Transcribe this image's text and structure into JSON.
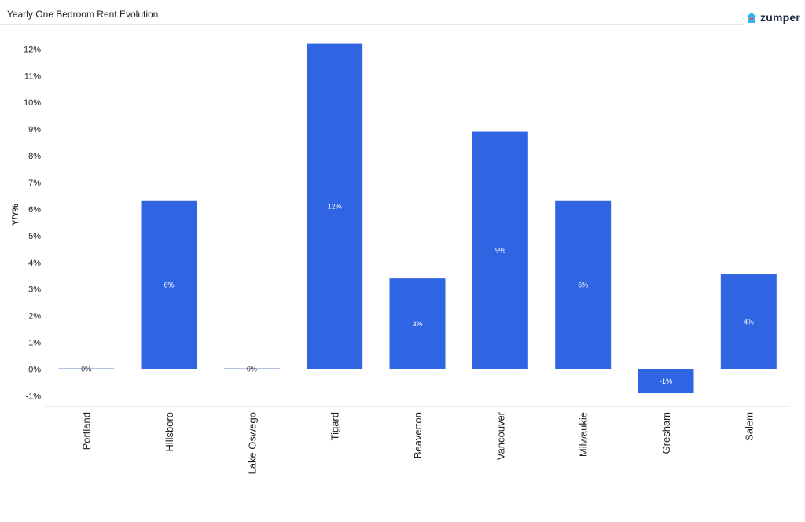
{
  "header": {
    "title": "Yearly One Bedroom Rent Evolution",
    "logo_text": "zumper",
    "logo_icon": "house-icon"
  },
  "colors": {
    "bar": "#2f64e3",
    "zero_bar": "#6b86d6",
    "logo_house": "#2fb6f0",
    "logo_dot": "#f0506e"
  },
  "chart_data": {
    "type": "bar",
    "title": "Yearly One Bedroom Rent Evolution",
    "xlabel": "",
    "ylabel": "Y/Y%",
    "ylim": [
      -1.4,
      12.6
    ],
    "yticks": [
      -1,
      0,
      1,
      2,
      3,
      4,
      5,
      6,
      7,
      8,
      9,
      10,
      11,
      12
    ],
    "ytick_labels": [
      "-1%",
      "0%",
      "1%",
      "2%",
      "3%",
      "4%",
      "5%",
      "6%",
      "7%",
      "8%",
      "9%",
      "10%",
      "11%",
      "12%"
    ],
    "grid": false,
    "categories": [
      "Portland",
      "Hillsboro",
      "Lake Oswego",
      "Tigard",
      "Beaverton",
      "Vancouver",
      "Milwaukie",
      "Gresham",
      "Salem"
    ],
    "values": [
      0.0,
      6.3,
      0.0,
      12.2,
      3.4,
      8.9,
      6.3,
      -0.9,
      3.55
    ],
    "data_labels": [
      "0%",
      "6%",
      "0%",
      "12%",
      "3%",
      "9%",
      "6%",
      "-1%",
      "4%"
    ]
  }
}
